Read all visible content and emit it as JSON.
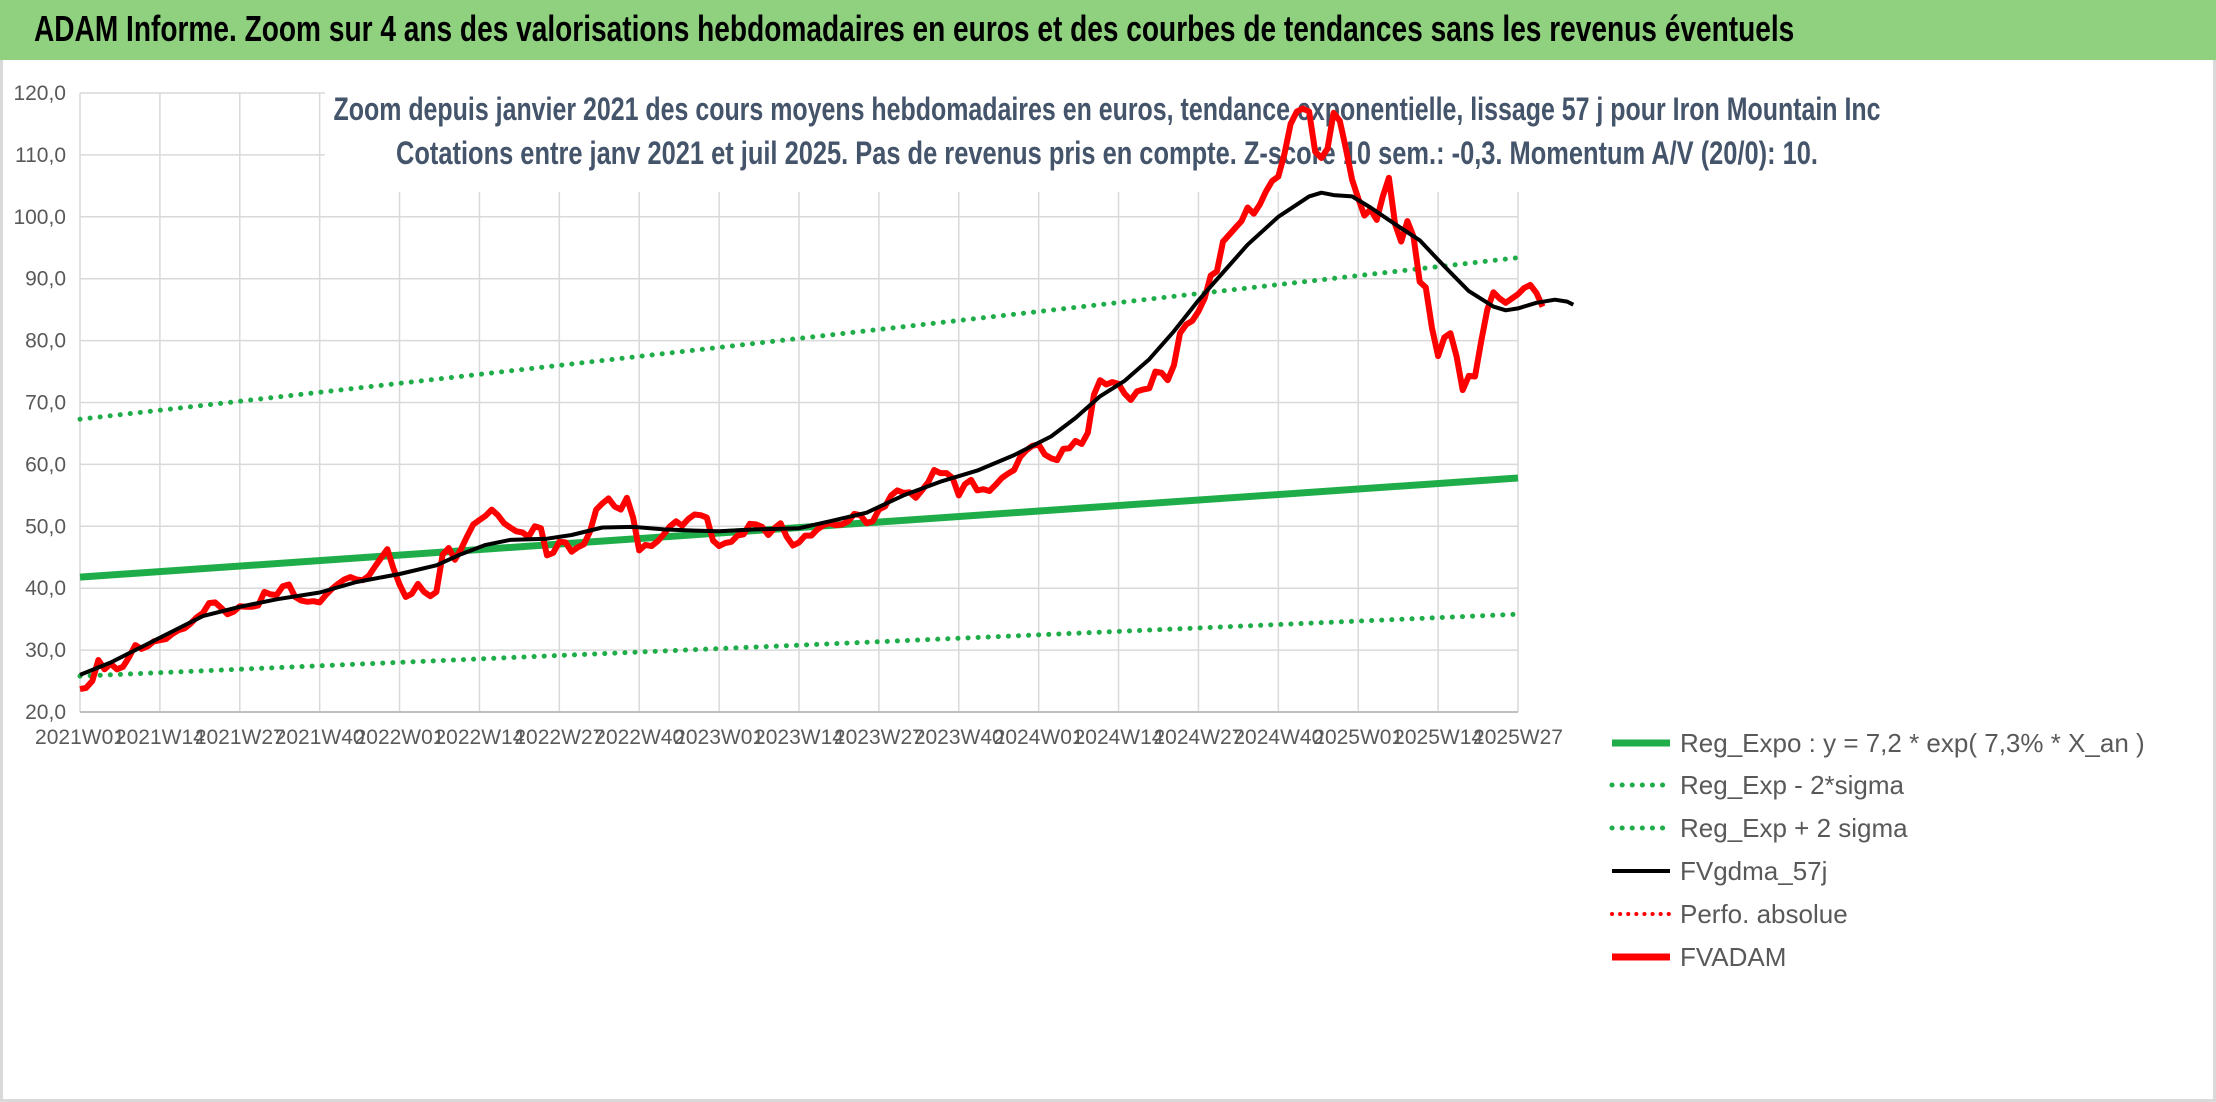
{
  "banner": {
    "title": "ADAM Informe. Zoom sur 4 ans des valorisations hebdomadaires en euros et des courbes de tendances sans les revenus éventuels"
  },
  "colors": {
    "banner_bg": "#8fd17f",
    "regression": "#1fad4a",
    "sma": "#000000",
    "price": "#ff0000",
    "grid": "#d9d9d9"
  },
  "chart_data": {
    "type": "line",
    "title_line1": "Zoom depuis janvier 2021 des cours moyens hebdomadaires en euros, tendance exponentielle, lissage 57 j pour Iron Mountain Inc",
    "title_line2": "Cotations entre janv 2021 et juil 2025. Pas de revenus pris en compte. Z-score 10 sem.: -0,3. Momentum A/V (20/0): 10.",
    "y_ticks": [
      "20,0",
      "30,0",
      "40,0",
      "50,0",
      "60,0",
      "70,0",
      "80,0",
      "90,0",
      "100,0",
      "110,0",
      "120,0"
    ],
    "ylim": [
      20,
      120
    ],
    "x_ticks": [
      "2021W01",
      "2021W14",
      "2021W27",
      "2021W40",
      "2022W01",
      "2022W14",
      "2022W27",
      "2022W40",
      "2023W01",
      "2023W14",
      "2023W27",
      "2023W40",
      "2024W01",
      "2024W14",
      "2024W27",
      "2024W40",
      "2025W01",
      "2025W14",
      "2025W27"
    ],
    "x_tick_weeks": [
      0,
      13,
      26,
      39,
      52,
      65,
      78,
      91,
      104,
      117,
      130,
      143,
      156,
      169,
      182,
      195,
      208,
      221,
      234
    ],
    "grid": true,
    "legend_position": "bottom-right",
    "legend": [
      {
        "label": "Reg_Expo : y = 7,2 * exp( 7,3% *  X_an )",
        "style": "solid-green"
      },
      {
        "label": "Reg_Exp - 2*sigma",
        "style": "dotted-green"
      },
      {
        "label": "Reg_Exp + 2 sigma",
        "style": "dotted-green"
      },
      {
        "label": "FVgdma_57j",
        "style": "solid-black"
      },
      {
        "label": "Perfo. absolue",
        "style": "dotted-red"
      },
      {
        "label": "FVADAM",
        "style": "solid-red"
      }
    ],
    "series": [
      {
        "key": "reg",
        "points": [
          [
            0,
            41.8
          ],
          [
            234,
            57.8
          ]
        ]
      },
      {
        "key": "reg_minus",
        "points": [
          [
            0,
            25.8
          ],
          [
            234,
            35.8
          ]
        ]
      },
      {
        "key": "reg_plus",
        "points": [
          [
            0,
            67.3
          ],
          [
            234,
            93.4
          ]
        ]
      },
      {
        "key": "sma",
        "points": [
          [
            0,
            26
          ],
          [
            5,
            28
          ],
          [
            10,
            30.5
          ],
          [
            15,
            33
          ],
          [
            20,
            35.5
          ],
          [
            26,
            37
          ],
          [
            32,
            38.2
          ],
          [
            39,
            39.3
          ],
          [
            45,
            41
          ],
          [
            52,
            42.3
          ],
          [
            58,
            43.7
          ],
          [
            62,
            45.5
          ],
          [
            66,
            47
          ],
          [
            70,
            47.8
          ],
          [
            76,
            48
          ],
          [
            80,
            48.6
          ],
          [
            85,
            49.8
          ],
          [
            90,
            49.9
          ],
          [
            95,
            49.5
          ],
          [
            100,
            49.3
          ],
          [
            104,
            49.2
          ],
          [
            110,
            49.5
          ],
          [
            117,
            49.7
          ],
          [
            122,
            50.8
          ],
          [
            128,
            52.2
          ],
          [
            134,
            55
          ],
          [
            140,
            57.2
          ],
          [
            146,
            59
          ],
          [
            152,
            61.5
          ],
          [
            158,
            64.5
          ],
          [
            162,
            67.5
          ],
          [
            166,
            71
          ],
          [
            170,
            73.5
          ],
          [
            174,
            77
          ],
          [
            178,
            81.5
          ],
          [
            182,
            86.5
          ],
          [
            186,
            91
          ],
          [
            190,
            95.5
          ],
          [
            195,
            100
          ],
          [
            200,
            103.3
          ],
          [
            202,
            103.9
          ],
          [
            204,
            103.5
          ],
          [
            207,
            103.3
          ],
          [
            210,
            101.5
          ],
          [
            214,
            98.8
          ],
          [
            218,
            96.2
          ],
          [
            222,
            92
          ],
          [
            226,
            88
          ],
          [
            230,
            85.5
          ],
          [
            232,
            84.9
          ],
          [
            234,
            85.2
          ],
          [
            237,
            86.1
          ],
          [
            240,
            86.6
          ],
          [
            242,
            86.3
          ],
          [
            243,
            85.8
          ]
        ]
      },
      {
        "key": "price",
        "points": [
          [
            0,
            23.7
          ],
          [
            1,
            23.9
          ],
          [
            2,
            25
          ],
          [
            3,
            28.4
          ],
          [
            4,
            26.9
          ],
          [
            5,
            27.8
          ],
          [
            6,
            26.9
          ],
          [
            7,
            27.3
          ],
          [
            8,
            28.9
          ],
          [
            9,
            30.8
          ],
          [
            10,
            30.2
          ],
          [
            11,
            30.6
          ],
          [
            12,
            31.4
          ],
          [
            13,
            31.6
          ],
          [
            14,
            31.8
          ],
          [
            15,
            32.6
          ],
          [
            16,
            33.2
          ],
          [
            17,
            33.5
          ],
          [
            18,
            34.3
          ],
          [
            19,
            35.3
          ],
          [
            20,
            36
          ],
          [
            21,
            37.6
          ],
          [
            22,
            37.7
          ],
          [
            23,
            36.8
          ],
          [
            24,
            35.8
          ],
          [
            25,
            36.2
          ],
          [
            26,
            37.1
          ],
          [
            27,
            37
          ],
          [
            28,
            37
          ],
          [
            29,
            37.2
          ],
          [
            30,
            39.4
          ],
          [
            31,
            39
          ],
          [
            32,
            38.9
          ],
          [
            33,
            40.3
          ],
          [
            34,
            40.6
          ],
          [
            35,
            38.6
          ],
          [
            36,
            38
          ],
          [
            37,
            37.8
          ],
          [
            38,
            37.9
          ],
          [
            39,
            37.7
          ],
          [
            40,
            38.9
          ],
          [
            41,
            39.9
          ],
          [
            42,
            40.7
          ],
          [
            43,
            41.4
          ],
          [
            44,
            41.8
          ],
          [
            45,
            41.4
          ],
          [
            46,
            41.3
          ],
          [
            47,
            42
          ],
          [
            48,
            43.5
          ],
          [
            49,
            44.9
          ],
          [
            50,
            46.3
          ],
          [
            51,
            43.2
          ],
          [
            52,
            40.6
          ],
          [
            53,
            38.6
          ],
          [
            54,
            39.1
          ],
          [
            55,
            40.7
          ],
          [
            56,
            39.4
          ],
          [
            57,
            38.7
          ],
          [
            58,
            39.4
          ],
          [
            59,
            45.4
          ],
          [
            60,
            46.5
          ],
          [
            61,
            44.6
          ],
          [
            62,
            46.3
          ],
          [
            63,
            48.4
          ],
          [
            64,
            50.3
          ],
          [
            65,
            51
          ],
          [
            66,
            51.7
          ],
          [
            67,
            52.7
          ],
          [
            68,
            51.8
          ],
          [
            69,
            50.5
          ],
          [
            70,
            49.8
          ],
          [
            71,
            49.2
          ],
          [
            72,
            49
          ],
          [
            73,
            48.3
          ],
          [
            74,
            50
          ],
          [
            75,
            49.7
          ],
          [
            76,
            45.3
          ],
          [
            77,
            45.7
          ],
          [
            78,
            47.5
          ],
          [
            79,
            47.4
          ],
          [
            80,
            45.9
          ],
          [
            81,
            46.6
          ],
          [
            82,
            47.1
          ],
          [
            83,
            49.2
          ],
          [
            84,
            52.7
          ],
          [
            85,
            53.7
          ],
          [
            86,
            54.5
          ],
          [
            87,
            53.2
          ],
          [
            88,
            52.7
          ],
          [
            89,
            54.6
          ],
          [
            90,
            51.4
          ],
          [
            91,
            46.1
          ],
          [
            92,
            47
          ],
          [
            93,
            46.8
          ],
          [
            94,
            47.6
          ],
          [
            95,
            48.7
          ],
          [
            96,
            50
          ],
          [
            97,
            50.8
          ],
          [
            98,
            50.1
          ],
          [
            99,
            51.2
          ],
          [
            100,
            51.9
          ],
          [
            101,
            51.8
          ],
          [
            102,
            51.4
          ],
          [
            103,
            47.7
          ],
          [
            104,
            46.8
          ],
          [
            105,
            47.3
          ],
          [
            106,
            47.5
          ],
          [
            107,
            48.5
          ],
          [
            108,
            48.7
          ],
          [
            109,
            50.4
          ],
          [
            110,
            50.3
          ],
          [
            111,
            49.9
          ],
          [
            112,
            48.6
          ],
          [
            113,
            49.7
          ],
          [
            114,
            50.5
          ],
          [
            115,
            48.3
          ],
          [
            116,
            46.9
          ],
          [
            117,
            47.4
          ],
          [
            118,
            48.5
          ],
          [
            119,
            48.5
          ],
          [
            120,
            49.5
          ],
          [
            121,
            50.2
          ],
          [
            122,
            50.5
          ],
          [
            123,
            50.2
          ],
          [
            124,
            50.3
          ],
          [
            125,
            50.8
          ],
          [
            126,
            52
          ],
          [
            127,
            51.8
          ],
          [
            128,
            50.5
          ],
          [
            129,
            50.8
          ],
          [
            130,
            52.7
          ],
          [
            131,
            53.2
          ],
          [
            132,
            55
          ],
          [
            133,
            55.8
          ],
          [
            134,
            55.4
          ],
          [
            135,
            55.5
          ],
          [
            136,
            54.6
          ],
          [
            137,
            55.8
          ],
          [
            138,
            57.1
          ],
          [
            139,
            59.1
          ],
          [
            140,
            58.6
          ],
          [
            141,
            58.6
          ],
          [
            142,
            57.8
          ],
          [
            143,
            55
          ],
          [
            144,
            56.8
          ],
          [
            145,
            57.5
          ],
          [
            146,
            55.8
          ],
          [
            147,
            56
          ],
          [
            148,
            55.7
          ],
          [
            149,
            56.7
          ],
          [
            150,
            57.8
          ],
          [
            151,
            58.5
          ],
          [
            152,
            59.1
          ],
          [
            153,
            61.2
          ],
          [
            154,
            62.3
          ],
          [
            155,
            63
          ],
          [
            156,
            63.2
          ],
          [
            157,
            61.6
          ],
          [
            158,
            61
          ],
          [
            159,
            60.7
          ],
          [
            160,
            62.5
          ],
          [
            161,
            62.6
          ],
          [
            162,
            63.8
          ],
          [
            163,
            63.3
          ],
          [
            164,
            65.1
          ],
          [
            165,
            71.3
          ],
          [
            166,
            73.6
          ],
          [
            167,
            72.9
          ],
          [
            168,
            73.3
          ],
          [
            169,
            73
          ],
          [
            170,
            71.4
          ],
          [
            171,
            70.4
          ],
          [
            172,
            71.8
          ],
          [
            173,
            72.1
          ],
          [
            174,
            72.3
          ],
          [
            175,
            75
          ],
          [
            176,
            74.8
          ],
          [
            177,
            73.6
          ],
          [
            178,
            76
          ],
          [
            179,
            81.2
          ],
          [
            180,
            82.6
          ],
          [
            181,
            83.2
          ],
          [
            182,
            84.7
          ],
          [
            183,
            86.8
          ],
          [
            184,
            90.5
          ],
          [
            185,
            91.2
          ],
          [
            186,
            96
          ],
          [
            187,
            97.1
          ],
          [
            188,
            98.2
          ],
          [
            189,
            99.3
          ],
          [
            190,
            101.5
          ],
          [
            191,
            100.5
          ],
          [
            192,
            102
          ],
          [
            193,
            104.1
          ],
          [
            194,
            105.8
          ],
          [
            195,
            106.5
          ],
          [
            196,
            110.2
          ],
          [
            197,
            115
          ],
          [
            198,
            117
          ],
          [
            199,
            117.5
          ],
          [
            200,
            117
          ],
          [
            201,
            110.5
          ],
          [
            202,
            109.5
          ],
          [
            203,
            111
          ],
          [
            204,
            116.8
          ],
          [
            205,
            115.5
          ],
          [
            206,
            111
          ],
          [
            207,
            106
          ],
          [
            208,
            103
          ],
          [
            209,
            100.2
          ],
          [
            210,
            101.2
          ],
          [
            211,
            99.5
          ],
          [
            212,
            103.3
          ],
          [
            213,
            106.3
          ],
          [
            214,
            98.8
          ],
          [
            215,
            96
          ],
          [
            216,
            99.3
          ],
          [
            217,
            96.8
          ],
          [
            218,
            89.5
          ],
          [
            219,
            88.6
          ],
          [
            220,
            82
          ],
          [
            221,
            77.5
          ],
          [
            222,
            80.5
          ],
          [
            223,
            81.2
          ],
          [
            224,
            77.5
          ],
          [
            225,
            72
          ],
          [
            226,
            74.3
          ],
          [
            227,
            74.2
          ],
          [
            228,
            79.8
          ],
          [
            229,
            85
          ],
          [
            230,
            87.8
          ],
          [
            231,
            86.8
          ],
          [
            232,
            86.1
          ],
          [
            233,
            86.8
          ],
          [
            234,
            87.5
          ],
          [
            235,
            88.5
          ],
          [
            236,
            89
          ],
          [
            237,
            87.7
          ],
          [
            238,
            85.5
          ]
        ]
      }
    ]
  }
}
